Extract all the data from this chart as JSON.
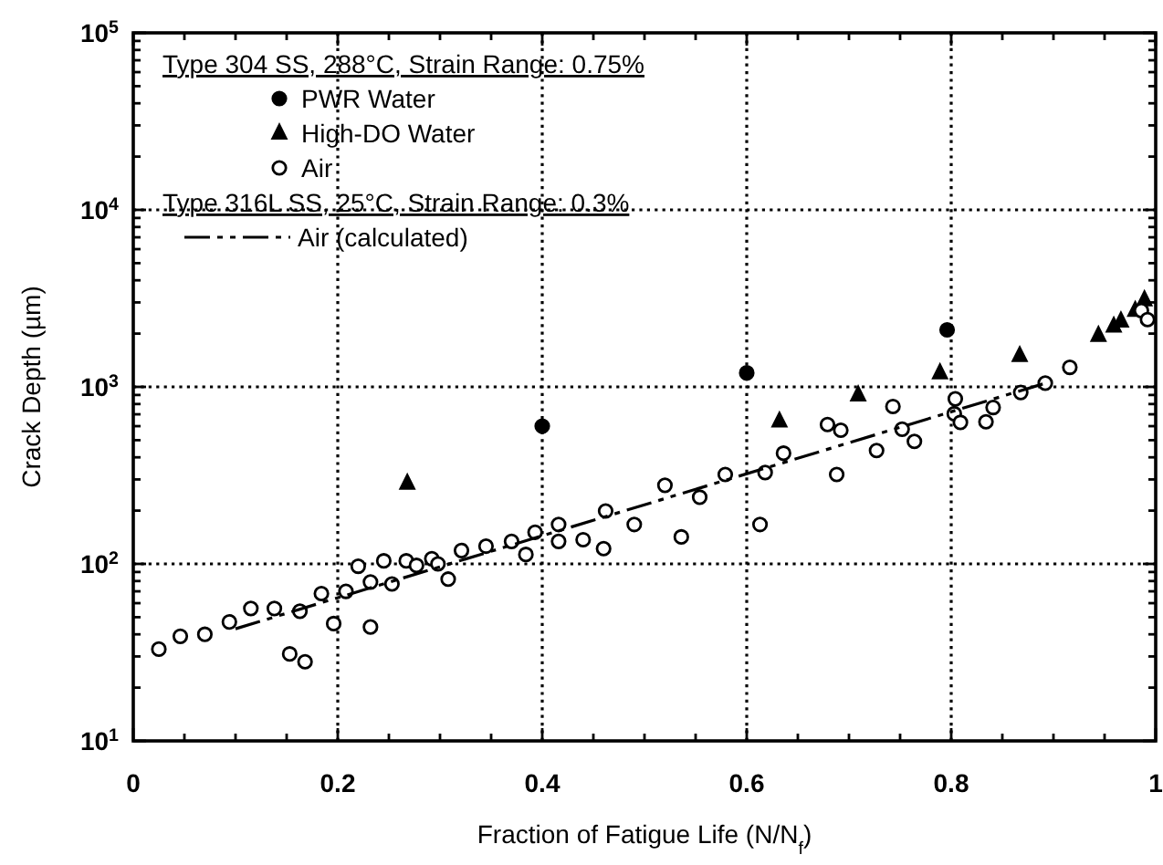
{
  "chart_data": {
    "type": "scatter",
    "xlabel": "Fraction of Fatigue Life (N/N$_{f}$)",
    "ylabel": "Crack Depth (µm)",
    "log": "y",
    "grid": true,
    "legend": "top left",
    "xlim": [
      0,
      1
    ],
    "ylim": [
      10,
      100000
    ],
    "xticks": [
      0,
      {
        "value": 0.05,
        "label": null
      },
      {
        "value": 0.1,
        "label": null
      },
      {
        "value": 0.15,
        "label": null
      },
      0.2,
      {
        "value": 0.25,
        "label": null
      },
      {
        "value": 0.3,
        "label": null
      },
      {
        "value": 0.35,
        "label": null
      },
      0.4,
      {
        "value": 0.45,
        "label": null
      },
      {
        "value": 0.5,
        "label": null
      },
      {
        "value": 0.55,
        "label": null
      },
      0.6,
      {
        "value": 0.65,
        "label": null
      },
      {
        "value": 0.7,
        "label": null
      },
      {
        "value": 0.75,
        "label": null
      },
      0.8,
      {
        "value": 0.85,
        "label": null
      },
      {
        "value": 0.9,
        "label": null
      },
      {
        "value": 0.95,
        "label": null
      },
      1
    ],
    "yticks": [
      {
        "value": 10,
        "label": "10$^{1}$"
      },
      {
        "value": 20,
        "label": null
      },
      {
        "value": 30,
        "label": null
      },
      {
        "value": 40,
        "label": null
      },
      {
        "value": 50,
        "label": null
      },
      {
        "value": 60,
        "label": null
      },
      {
        "value": 70,
        "label": null
      },
      {
        "value": 80,
        "label": null
      },
      {
        "value": 90,
        "label": null
      },
      {
        "value": 100,
        "label": "10$^{2}$"
      },
      {
        "value": 200,
        "label": null
      },
      {
        "value": 300,
        "label": null
      },
      {
        "value": 400,
        "label": null
      },
      {
        "value": 500,
        "label": null
      },
      {
        "value": 600,
        "label": null
      },
      {
        "value": 700,
        "label": null
      },
      {
        "value": 800,
        "label": null
      },
      {
        "value": 900,
        "label": null
      },
      {
        "value": 1000,
        "label": "10$^{3}$"
      },
      {
        "value": 2000,
        "label": null
      },
      {
        "value": 3000,
        "label": null
      },
      {
        "value": 4000,
        "label": null
      },
      {
        "value": 5000,
        "label": null
      },
      {
        "value": 6000,
        "label": null
      },
      {
        "value": 7000,
        "label": null
      },
      {
        "value": 8000,
        "label": null
      },
      {
        "value": 9000,
        "label": null
      },
      {
        "value": 10000,
        "label": "10$^{4}$"
      },
      {
        "value": 20000,
        "label": null
      },
      {
        "value": 30000,
        "label": null
      },
      {
        "value": 40000,
        "label": null
      },
      {
        "value": 50000,
        "label": null
      },
      {
        "value": 60000,
        "label": null
      },
      {
        "value": 70000,
        "label": null
      },
      {
        "value": 80000,
        "label": null
      },
      {
        "value": 90000,
        "label": null
      },
      {
        "value": 100000,
        "label": "10$^{5}$"
      }
    ],
    "annotations": [
      "Type 304 SS, 288°C, Strain Range:  0.75%",
      "Type 316L SS, 25°C, Strain Range:  0.3%"
    ],
    "series": [
      {
        "name": "PWR Water",
        "color": "#000000",
        "marker": "circle",
        "x": [
          0.4,
          0.6,
          0.796
        ],
        "values": [
          600,
          1200,
          2100
        ]
      },
      {
        "name": "High-DO Water",
        "color": "#000000",
        "marker": "triangle",
        "x": [
          0.268,
          0.632,
          0.709,
          0.789,
          0.867,
          0.944,
          0.959,
          0.966,
          0.98,
          0.989
        ],
        "values": [
          285,
          640,
          900,
          1200,
          1500,
          1950,
          2200,
          2350,
          2700,
          3100
        ]
      },
      {
        "name": "Air",
        "color": "#ffffff",
        "marker": "circle",
        "x": [
          0.025,
          0.046,
          0.07,
          0.094,
          0.115,
          0.138,
          0.163,
          0.153,
          0.168,
          0.184,
          0.196,
          0.208,
          0.22,
          0.232,
          0.232,
          0.245,
          0.253,
          0.267,
          0.277,
          0.292,
          0.298,
          0.308,
          0.321,
          0.345,
          0.37,
          0.384,
          0.393,
          0.416,
          0.416,
          0.44,
          0.46,
          0.462,
          0.49,
          0.52,
          0.536,
          0.554,
          0.579,
          0.613,
          0.618,
          0.636,
          0.679,
          0.692,
          0.688,
          0.727,
          0.743,
          0.752,
          0.764,
          0.804,
          0.803,
          0.809,
          0.834,
          0.841,
          0.868,
          0.892,
          0.916,
          0.986,
          0.992
        ],
        "values": [
          33,
          39,
          40,
          47,
          56,
          56,
          54,
          31,
          28,
          68,
          46,
          70,
          97,
          44,
          79,
          104,
          77,
          104,
          98,
          107,
          100,
          82,
          119,
          126,
          134,
          113,
          151,
          167,
          134,
          137,
          122,
          199,
          167,
          278,
          142,
          238,
          320,
          167,
          328,
          422,
          613,
          569,
          320,
          437,
          775,
          577,
          492,
          856,
          705,
          630,
          635,
          765,
          930,
          1050,
          1290,
          2700,
          2400
        ]
      },
      {
        "name": "Air (calculated)",
        "type": "line",
        "line_style": "dashed",
        "color": "#000000",
        "marker": "none",
        "x": [
          0.1,
          0.89
        ],
        "values": [
          43,
          1040
        ]
      }
    ]
  }
}
